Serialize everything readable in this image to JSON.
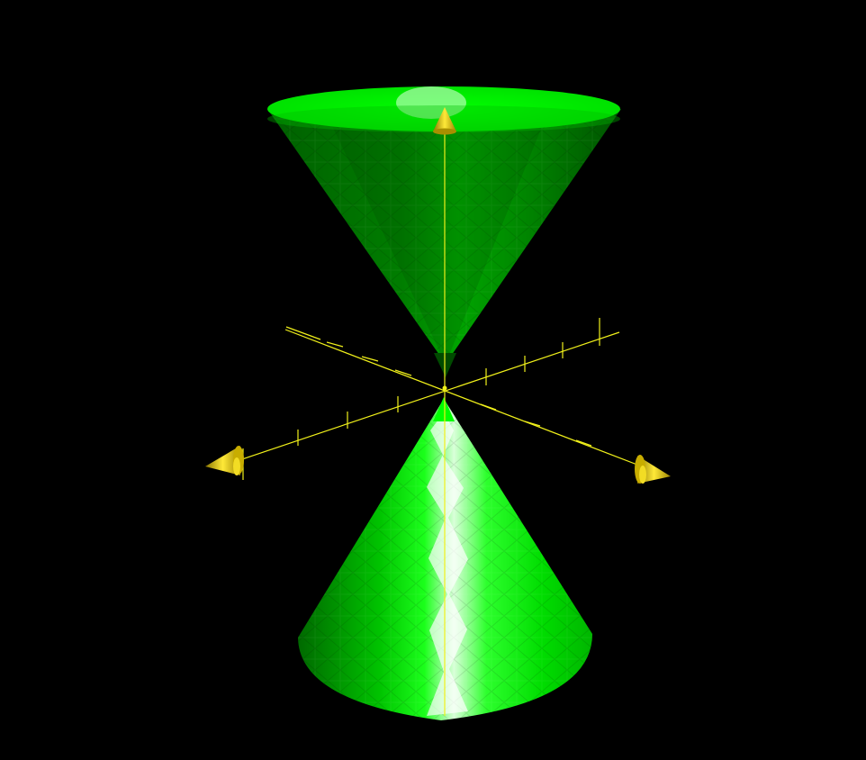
{
  "scene": {
    "background_color": "#000000",
    "surface": "double-cone",
    "surface_color": "#00ff00",
    "surface_shadow_color": "#006a00",
    "surface_highlight_color": "#e6ffe6",
    "axes_color": "#f0f01a",
    "arrowhead_color": "#d8c20a",
    "axes": [
      {
        "direction": "vertical",
        "arrowhead": "cone"
      },
      {
        "direction": "left-diagonal",
        "arrowhead": "cone"
      },
      {
        "direction": "right-diagonal",
        "arrowhead": "cone"
      }
    ]
  }
}
